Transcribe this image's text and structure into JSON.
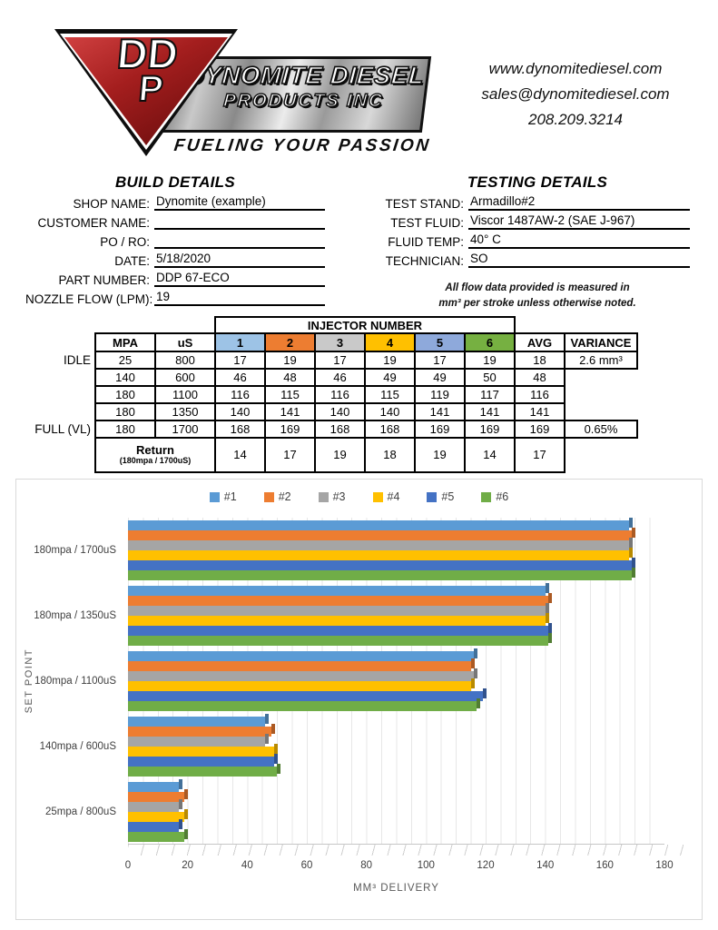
{
  "logo": {
    "monogram_top": "DD",
    "monogram_bottom": "P",
    "company_line1": "DYNOMITE DIESEL",
    "company_line2": "PRODUCTS INC",
    "tagline": "FUELING YOUR PASSION"
  },
  "contact": {
    "website": "www.dynomitediesel.com",
    "email": "sales@dynomitediesel.com",
    "phone": "208.209.3214"
  },
  "build_details": {
    "title": "BUILD DETAILS",
    "fields": [
      {
        "label": "SHOP NAME:",
        "value": "Dynomite (example)"
      },
      {
        "label": "CUSTOMER NAME:",
        "value": ""
      },
      {
        "label": "PO / RO:",
        "value": ""
      },
      {
        "label": "DATE:",
        "value": "5/18/2020"
      },
      {
        "label": "PART NUMBER:",
        "value": "DDP 67-ECO"
      },
      {
        "label": "NOZZLE FLOW (LPM):",
        "value": "19"
      }
    ]
  },
  "testing_details": {
    "title": "TESTING DETAILS",
    "fields": [
      {
        "label": "TEST STAND:",
        "value": "Armadillo#2"
      },
      {
        "label": "TEST FLUID:",
        "value": "Viscor 1487AW-2 (SAE J-967)"
      },
      {
        "label": "FLUID TEMP:",
        "value": "40° C"
      },
      {
        "label": "TECHNICIAN:",
        "value": "SO"
      }
    ],
    "note_line1": "All flow data provided is measured in",
    "note_line2": "mm³ per stroke unless otherwise noted."
  },
  "flow_table": {
    "injector_header": "INJECTOR NUMBER",
    "columns": [
      "MPA",
      "uS",
      "1",
      "2",
      "3",
      "4",
      "5",
      "6",
      "AVG",
      "VARIANCE"
    ],
    "injector_header_colors": [
      "#9DC3E6",
      "#ED7D31",
      "#C9C9C9",
      "#FFC000",
      "#8EA9DB",
      "#76B041"
    ],
    "rows": [
      {
        "row_label": "IDLE",
        "mpa": "25",
        "us": "800",
        "values": [
          "17",
          "19",
          "17",
          "19",
          "17",
          "19"
        ],
        "avg": "18",
        "variance": "2.6 mm³"
      },
      {
        "row_label": "",
        "mpa": "140",
        "us": "600",
        "values": [
          "46",
          "48",
          "46",
          "49",
          "49",
          "50"
        ],
        "avg": "48",
        "variance": ""
      },
      {
        "row_label": "",
        "mpa": "180",
        "us": "1100",
        "values": [
          "116",
          "115",
          "116",
          "115",
          "119",
          "117"
        ],
        "avg": "116",
        "variance": ""
      },
      {
        "row_label": "",
        "mpa": "180",
        "us": "1350",
        "values": [
          "140",
          "141",
          "140",
          "140",
          "141",
          "141"
        ],
        "avg": "141",
        "variance": ""
      },
      {
        "row_label": "FULL (VL)",
        "mpa": "180",
        "us": "1700",
        "values": [
          "168",
          "169",
          "168",
          "168",
          "169",
          "169"
        ],
        "avg": "169",
        "variance": "0.65%"
      }
    ],
    "return_row": {
      "label": "Return",
      "sublabel": "(180mpa / 1700uS)",
      "values": [
        "14",
        "17",
        "19",
        "18",
        "19",
        "14"
      ],
      "avg": "17",
      "variance": ""
    }
  },
  "chart_data": {
    "type": "bar",
    "orientation": "horizontal",
    "title": "",
    "categories": [
      "180mpa / 1700uS",
      "180mpa / 1350uS",
      "180mpa / 1100uS",
      "140mpa / 600uS",
      "25mpa / 800uS"
    ],
    "series": [
      {
        "name": "#1",
        "color": "#5B9BD5",
        "values": [
          168,
          140,
          116,
          46,
          17
        ]
      },
      {
        "name": "#2",
        "color": "#ED7D31",
        "values": [
          169,
          141,
          115,
          48,
          19
        ]
      },
      {
        "name": "#3",
        "color": "#A5A5A5",
        "values": [
          168,
          140,
          116,
          46,
          17
        ]
      },
      {
        "name": "#4",
        "color": "#FFC000",
        "values": [
          168,
          140,
          115,
          49,
          19
        ]
      },
      {
        "name": "#5",
        "color": "#4472C4",
        "values": [
          169,
          141,
          119,
          49,
          17
        ]
      },
      {
        "name": "#6",
        "color": "#70AD47",
        "values": [
          169,
          141,
          117,
          50,
          19
        ]
      }
    ],
    "xlabel": "MM³ DELIVERY",
    "ylabel": "SET POINT",
    "xlim": [
      0,
      180
    ],
    "xticks": [
      0,
      20,
      40,
      60,
      80,
      100,
      120,
      140,
      160,
      180
    ],
    "gridlines": true,
    "legend_position": "top"
  }
}
